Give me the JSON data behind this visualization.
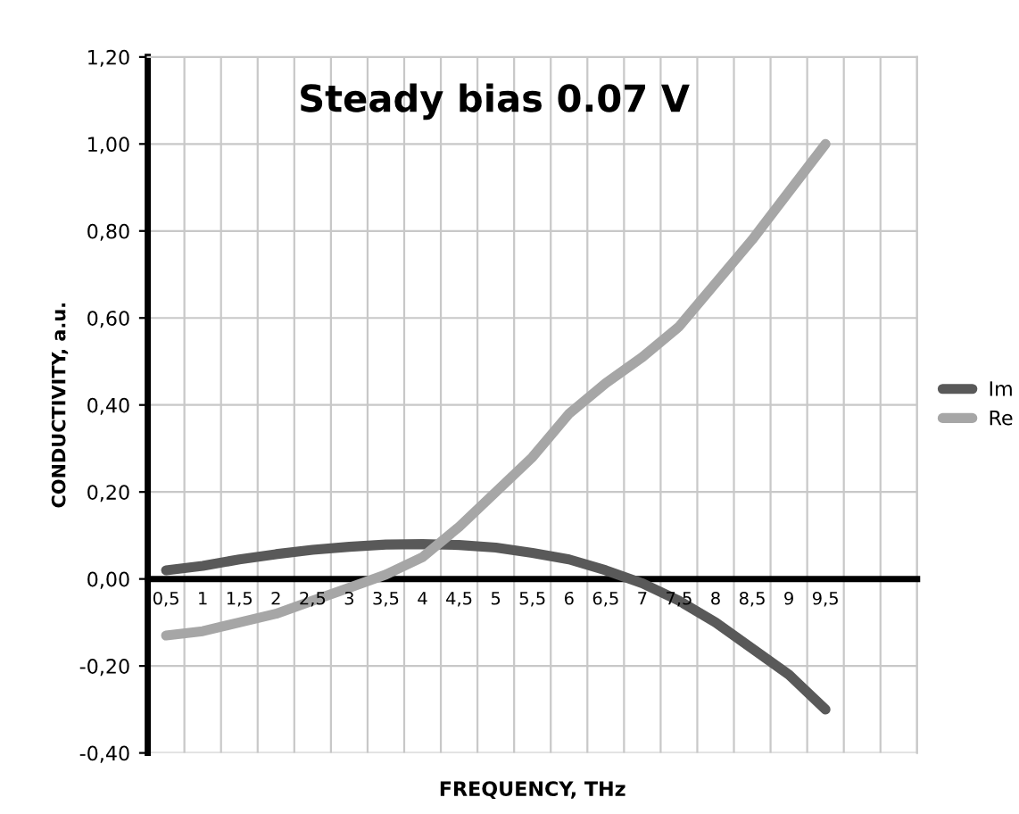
{
  "chart_data": {
    "type": "line",
    "title": "Steady bias 0.07 V",
    "xlabel": "FREQUENCY, THz",
    "ylabel": "CONDUCTIVITY, a.u.",
    "categories": [
      "0,5",
      "1",
      "1,5",
      "2",
      "2,5",
      "3",
      "3,5",
      "4",
      "4,5",
      "5",
      "5,5",
      "6",
      "6,5",
      "7",
      "7,5",
      "8",
      "8,5",
      "9",
      "9,5",
      null,
      null
    ],
    "series": [
      {
        "name": "Im",
        "color": "#595959",
        "values": [
          0.02,
          0.03,
          0.045,
          0.057,
          0.067,
          0.074,
          0.079,
          0.08,
          0.078,
          0.072,
          0.06,
          0.045,
          0.02,
          -0.01,
          -0.05,
          -0.1,
          -0.16,
          -0.22,
          -0.3,
          null,
          null
        ]
      },
      {
        "name": "Re",
        "color": "#a6a6a6",
        "values": [
          -0.13,
          -0.12,
          -0.1,
          -0.08,
          -0.05,
          -0.02,
          0.01,
          0.05,
          0.12,
          0.2,
          0.28,
          0.38,
          0.45,
          0.51,
          0.58,
          0.68,
          0.78,
          0.89,
          1.0,
          null,
          null
        ]
      }
    ],
    "ylim": [
      -0.4,
      1.2
    ],
    "yticks": [
      {
        "value": -0.4,
        "label": "-0,40"
      },
      {
        "value": -0.2,
        "label": "-0,20"
      },
      {
        "value": 0,
        "label": "0,00"
      },
      {
        "value": 0.2,
        "label": "0,20"
      },
      {
        "value": 0.4,
        "label": "0,40"
      },
      {
        "value": 0.6,
        "label": "0,60"
      },
      {
        "value": 0.8,
        "label": "0,80"
      },
      {
        "value": 1.0,
        "label": "1,00"
      },
      {
        "value": 1.2,
        "label": "1,20"
      }
    ],
    "grid": true,
    "legend": "right",
    "marker": "none",
    "line_style": "solid"
  }
}
